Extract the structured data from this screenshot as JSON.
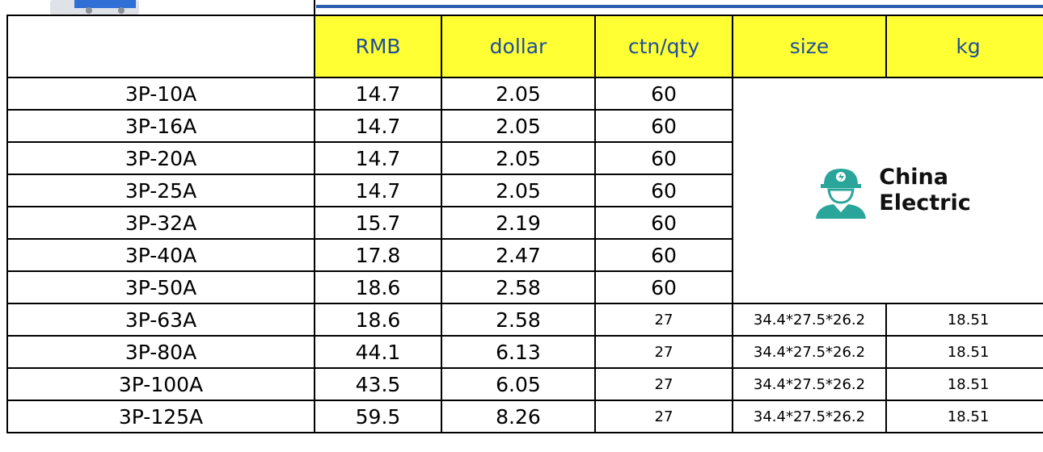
{
  "header": {
    "columns": [
      "RMB",
      "dollar",
      "ctn/qty",
      "size",
      "kg"
    ]
  },
  "logo": {
    "line1": "China",
    "line2": "Electric"
  },
  "rows": [
    [
      "3P-10A",
      "14.7",
      "2.05",
      "60"
    ],
    [
      "3P-16A",
      "14.7",
      "2.05",
      "60"
    ],
    [
      "3P-20A",
      "14.7",
      "2.05",
      "60"
    ],
    [
      "3P-25A",
      "14.7",
      "2.05",
      "60"
    ],
    [
      "3P-32A",
      "15.7",
      "2.19",
      "60"
    ],
    [
      "3P-40A",
      "17.8",
      "2.47",
      "60"
    ],
    [
      "3P-50A",
      "18.6",
      "2.58",
      "60"
    ],
    [
      "3P-63A",
      "18.6",
      "2.58",
      "27",
      "34.4*27.5*26.2",
      "18.51"
    ],
    [
      "3P-80A",
      "44.1",
      "6.13",
      "27",
      "34.4*27.5*26.2",
      "18.51"
    ],
    [
      "3P-100A",
      "43.5",
      "6.05",
      "27",
      "34.4*27.5*26.2",
      "18.51"
    ],
    [
      "3P-125A",
      "59.5",
      "8.26",
      "27",
      "34.4*27.5*26.2",
      "18.51"
    ]
  ]
}
